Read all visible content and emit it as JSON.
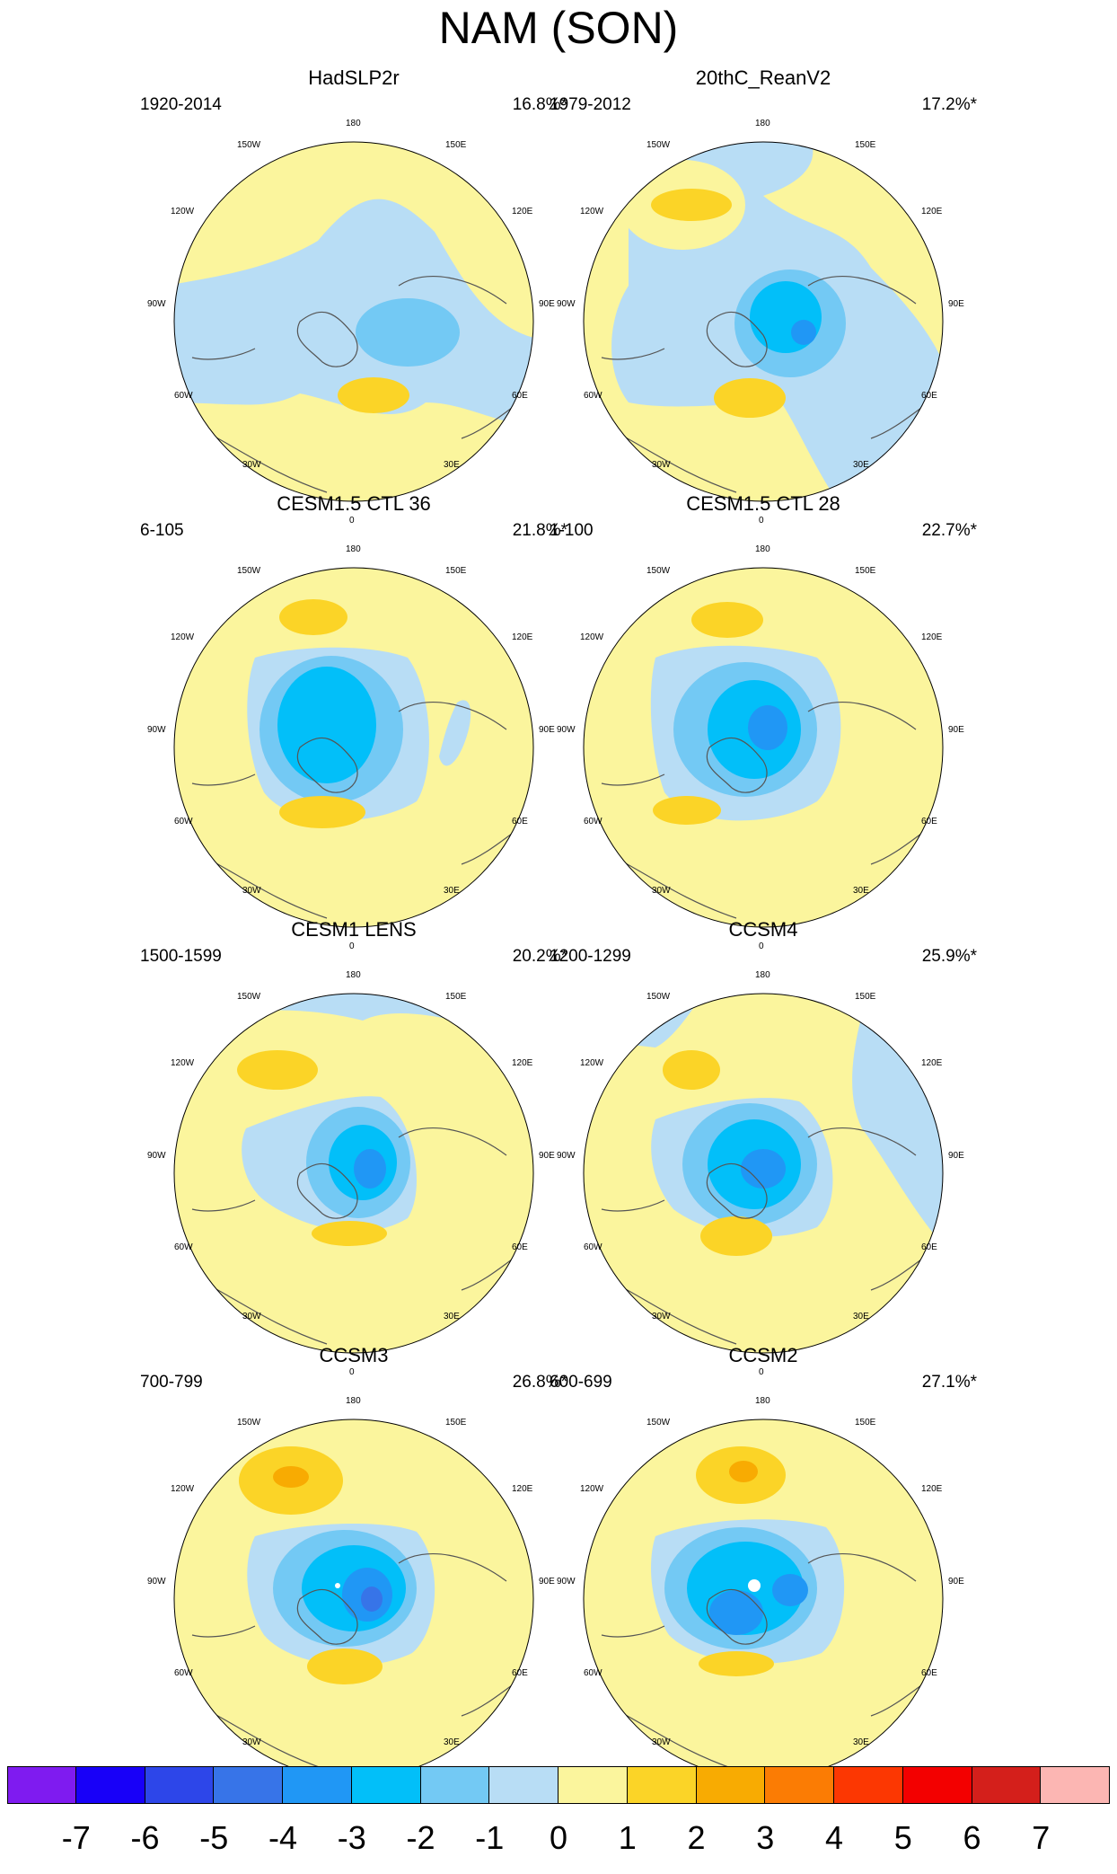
{
  "title": "NAM (SON)",
  "colors": {
    "neg7": "#7f1bf0",
    "neg6": "#1800f8",
    "neg5": "#2d46e9",
    "neg4": "#3774e8",
    "neg3": "#2097f5",
    "neg2": "#02bff9",
    "neg1": "#73c9f4",
    "neg0": "#b8ddf5",
    "pos0": "#fbf59d",
    "pos1": "#fbd427",
    "pos2": "#f8ab02",
    "pos3": "#fb7c04",
    "pos4": "#fc3702",
    "pos5": "#f30000",
    "pos6": "#d41f1b",
    "pos7": "#fcb6b3",
    "coast": "#555555"
  },
  "axis_labels": {
    "top": "180",
    "bottom": "0",
    "w150": "150W",
    "e150": "150E",
    "w120": "120W",
    "e120": "120E",
    "w90": "90W",
    "e90": "90E",
    "w60": "60W",
    "e60": "60E",
    "w30": "30W",
    "e30": "30E"
  },
  "panels": [
    {
      "title": "HadSLP2r",
      "period": "1920-2014",
      "percent": "16.8%*"
    },
    {
      "title": "20thC_ReanV2",
      "period": "1979-2012",
      "percent": "17.2%*"
    },
    {
      "title": "CESM1.5 CTL 36",
      "period": "6-105",
      "percent": "21.8%*"
    },
    {
      "title": "CESM1.5 CTL 28",
      "period": "1-100",
      "percent": "22.7%*"
    },
    {
      "title": "CESM1 LENS",
      "period": "1500-1599",
      "percent": "20.2%*"
    },
    {
      "title": "CCSM4",
      "period": "1200-1299",
      "percent": "25.9%*"
    },
    {
      "title": "CCSM3",
      "period": "700-799",
      "percent": "26.8%*"
    },
    {
      "title": "CCSM2",
      "period": "600-699",
      "percent": "27.1%*"
    }
  ],
  "colorbar": {
    "ticks": [
      "-7",
      "-6",
      "-5",
      "-4",
      "-3",
      "-2",
      "-1",
      "0",
      "1",
      "2",
      "3",
      "4",
      "5",
      "6",
      "7"
    ],
    "tick_values": [
      -7,
      -6,
      -5,
      -4,
      -3,
      -2,
      -1,
      0,
      1,
      2,
      3,
      4,
      5,
      6,
      7
    ],
    "range": [
      -8,
      8
    ],
    "bins": [
      "neg7",
      "neg6",
      "neg5",
      "neg4",
      "neg3",
      "neg2",
      "neg1",
      "neg0",
      "pos0",
      "pos1",
      "pos2",
      "pos3",
      "pos4",
      "pos5",
      "pos6",
      "pos7"
    ]
  }
}
